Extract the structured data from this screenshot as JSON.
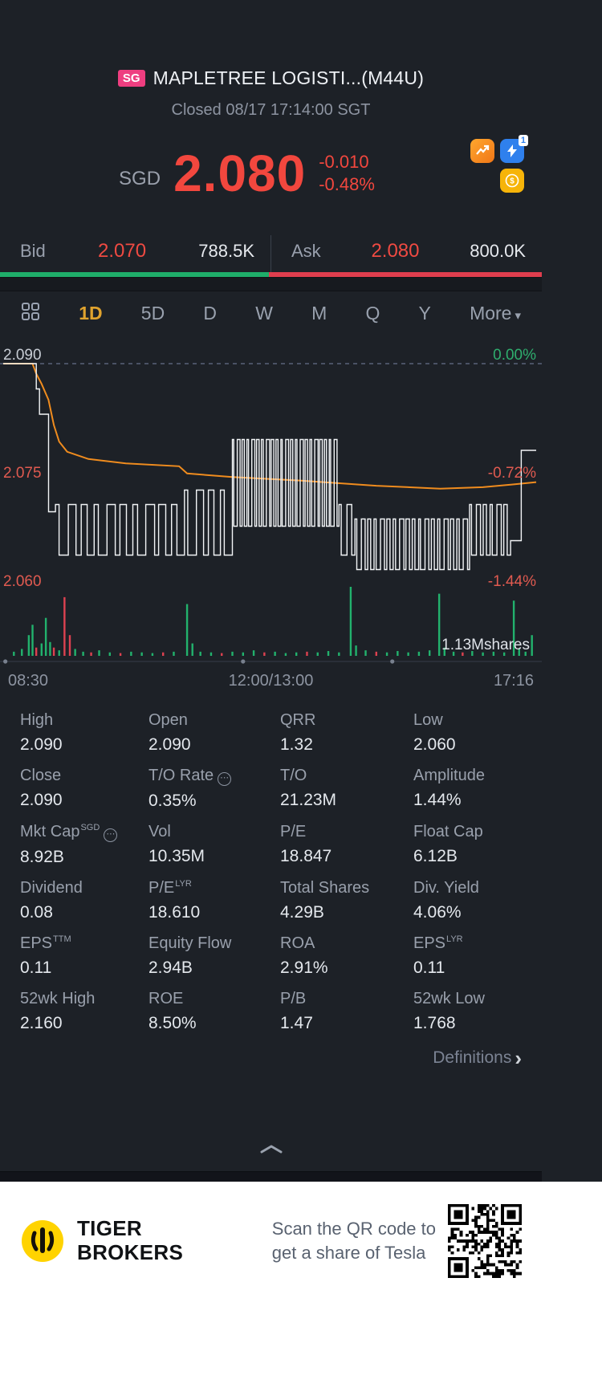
{
  "header": {
    "exchange_badge": "SG",
    "title": "MAPLETREE LOGISTI...(M44U)",
    "status": "Closed 08/17 17:14:00 SGT"
  },
  "price": {
    "currency": "SGD",
    "last": "2.080",
    "change": "-0.010",
    "change_pct": "-0.48%"
  },
  "quick_actions": {
    "flash_badge": "1",
    "rewards_symbol": "$"
  },
  "quote": {
    "bid_label": "Bid",
    "bid_price": "2.070",
    "bid_size": "788.5K",
    "ask_label": "Ask",
    "ask_price": "2.080",
    "ask_size": "800.0K",
    "bid_ratio_pct": 49.6
  },
  "tabs": {
    "items": [
      "1D",
      "5D",
      "D",
      "W",
      "M",
      "Q",
      "Y"
    ],
    "active": "1D",
    "more_label": "More"
  },
  "chart_data": {
    "type": "line",
    "x_axis_labels": [
      "08:30",
      "12:00/13:00",
      "17:16"
    ],
    "price_axis_labels": [
      {
        "text": "2.090",
        "price": 2.09,
        "color": "#c8cdd5"
      },
      {
        "text": "2.075",
        "price": 2.075,
        "color": "#e05a50"
      },
      {
        "text": "2.060",
        "price": 2.06,
        "color": "#e05a50"
      }
    ],
    "pct_axis_labels": [
      {
        "text": "0.00%",
        "price": 2.09,
        "color": "#2fae6e"
      },
      {
        "text": "-0.72%",
        "price": 2.075,
        "color": "#e05a50"
      },
      {
        "text": "-1.44%",
        "price": 2.06,
        "color": "#e05a50"
      }
    ],
    "prev_close": 2.09,
    "price_min": 2.06,
    "price_max": 2.09,
    "volume_label": "1.13Mshares",
    "price_line_color": "#f3f5f7",
    "avg_line_color": "#f08c1e",
    "volume_up_color": "#22b26d",
    "volume_down_color": "#dd4150",
    "axis_dots_x": [
      0.004,
      0.45,
      0.73
    ],
    "price_line_segments": [
      {
        "t": "flat",
        "x0": 0.0,
        "x1": 0.062,
        "p": 2.09
      },
      {
        "t": "flat",
        "x0": 0.062,
        "x1": 0.068,
        "p": 2.0865
      },
      {
        "t": "flat",
        "x0": 0.068,
        "x1": 0.08,
        "p": 2.083
      },
      {
        "t": "osc",
        "x0": 0.08,
        "x1": 0.098,
        "hi": 2.083,
        "lo": 2.0695,
        "n": 1
      },
      {
        "t": "osc",
        "x0": 0.098,
        "x1": 0.34,
        "hi": 2.0705,
        "lo": 2.0635,
        "n": 10
      },
      {
        "t": "osc",
        "x0": 0.34,
        "x1": 0.43,
        "hi": 2.0725,
        "lo": 2.0635,
        "n": 4
      },
      {
        "t": "osc",
        "x0": 0.43,
        "x1": 0.63,
        "hi": 2.0795,
        "lo": 2.0675,
        "n": 22
      },
      {
        "t": "osc",
        "x0": 0.63,
        "x1": 0.66,
        "hi": 2.0705,
        "lo": 2.0635,
        "n": 2
      },
      {
        "t": "osc",
        "x0": 0.66,
        "x1": 0.875,
        "hi": 2.0685,
        "lo": 2.0615,
        "n": 18
      },
      {
        "t": "osc",
        "x0": 0.875,
        "x1": 0.952,
        "hi": 2.0705,
        "lo": 2.0635,
        "n": 6
      },
      {
        "t": "flat",
        "x0": 0.952,
        "x1": 0.972,
        "p": 2.0655
      },
      {
        "t": "flat",
        "x0": 0.972,
        "x1": 1.0,
        "p": 2.078
      }
    ],
    "avg_line_points": [
      [
        0.0,
        2.09
      ],
      [
        0.055,
        2.09
      ],
      [
        0.062,
        2.0886
      ],
      [
        0.072,
        2.0872
      ],
      [
        0.085,
        2.085
      ],
      [
        0.095,
        2.0815
      ],
      [
        0.105,
        2.0792
      ],
      [
        0.12,
        2.0778
      ],
      [
        0.16,
        2.0768
      ],
      [
        0.23,
        2.0762
      ],
      [
        0.33,
        2.0758
      ],
      [
        0.345,
        2.0748
      ],
      [
        0.43,
        2.0743
      ],
      [
        0.56,
        2.0738
      ],
      [
        0.7,
        2.0731
      ],
      [
        0.82,
        2.0727
      ],
      [
        0.9,
        2.0729
      ],
      [
        0.96,
        2.0733
      ],
      [
        1.0,
        2.0736
      ]
    ],
    "volume_bars": [
      [
        0.02,
        0.06,
        "g"
      ],
      [
        0.035,
        0.1,
        "g"
      ],
      [
        0.048,
        0.3,
        "g"
      ],
      [
        0.055,
        0.45,
        "g"
      ],
      [
        0.062,
        0.12,
        "r"
      ],
      [
        0.072,
        0.18,
        "g"
      ],
      [
        0.08,
        0.55,
        "g"
      ],
      [
        0.088,
        0.2,
        "g"
      ],
      [
        0.095,
        0.12,
        "r"
      ],
      [
        0.105,
        0.08,
        "g"
      ],
      [
        0.115,
        0.85,
        "r"
      ],
      [
        0.125,
        0.3,
        "r"
      ],
      [
        0.135,
        0.1,
        "g"
      ],
      [
        0.15,
        0.06,
        "g"
      ],
      [
        0.165,
        0.05,
        "r"
      ],
      [
        0.18,
        0.08,
        "g"
      ],
      [
        0.2,
        0.05,
        "g"
      ],
      [
        0.22,
        0.04,
        "r"
      ],
      [
        0.24,
        0.06,
        "g"
      ],
      [
        0.26,
        0.05,
        "g"
      ],
      [
        0.28,
        0.04,
        "g"
      ],
      [
        0.3,
        0.05,
        "r"
      ],
      [
        0.32,
        0.06,
        "g"
      ],
      [
        0.345,
        0.75,
        "g"
      ],
      [
        0.355,
        0.18,
        "g"
      ],
      [
        0.37,
        0.06,
        "g"
      ],
      [
        0.39,
        0.05,
        "g"
      ],
      [
        0.41,
        0.04,
        "r"
      ],
      [
        0.43,
        0.06,
        "g"
      ],
      [
        0.45,
        0.05,
        "g"
      ],
      [
        0.47,
        0.08,
        "g"
      ],
      [
        0.49,
        0.05,
        "r"
      ],
      [
        0.51,
        0.06,
        "g"
      ],
      [
        0.53,
        0.04,
        "g"
      ],
      [
        0.55,
        0.05,
        "g"
      ],
      [
        0.57,
        0.06,
        "r"
      ],
      [
        0.59,
        0.05,
        "g"
      ],
      [
        0.61,
        0.07,
        "g"
      ],
      [
        0.63,
        0.05,
        "g"
      ],
      [
        0.652,
        1.0,
        "g"
      ],
      [
        0.662,
        0.15,
        "g"
      ],
      [
        0.68,
        0.08,
        "g"
      ],
      [
        0.7,
        0.06,
        "r"
      ],
      [
        0.72,
        0.05,
        "g"
      ],
      [
        0.74,
        0.07,
        "g"
      ],
      [
        0.76,
        0.05,
        "g"
      ],
      [
        0.78,
        0.06,
        "g"
      ],
      [
        0.8,
        0.08,
        "g"
      ],
      [
        0.818,
        0.9,
        "g"
      ],
      [
        0.828,
        0.12,
        "g"
      ],
      [
        0.845,
        0.06,
        "g"
      ],
      [
        0.862,
        0.05,
        "r"
      ],
      [
        0.88,
        0.07,
        "g"
      ],
      [
        0.9,
        0.05,
        "g"
      ],
      [
        0.92,
        0.06,
        "g"
      ],
      [
        0.94,
        0.05,
        "g"
      ],
      [
        0.958,
        0.8,
        "g"
      ],
      [
        0.968,
        0.1,
        "g"
      ],
      [
        0.98,
        0.06,
        "g"
      ],
      [
        0.992,
        0.3,
        "g"
      ]
    ]
  },
  "stats": {
    "rows": [
      [
        {
          "label": "High",
          "value": "2.090"
        },
        {
          "label": "Open",
          "value": "2.090"
        },
        {
          "label": "QRR",
          "value": "1.32"
        },
        {
          "label": "Low",
          "value": "2.060"
        }
      ],
      [
        {
          "label": "Close",
          "value": "2.090"
        },
        {
          "label": "T/O Rate",
          "value": "0.35%",
          "icon": "info"
        },
        {
          "label": "T/O",
          "value": "21.23M"
        },
        {
          "label": "Amplitude",
          "value": "1.44%"
        }
      ],
      [
        {
          "label": "Mkt Cap",
          "value": "8.92B",
          "sup": "SGD",
          "icon": "info"
        },
        {
          "label": "Vol",
          "value": "10.35M"
        },
        {
          "label": "P/E",
          "value": "18.847"
        },
        {
          "label": "Float Cap",
          "value": "6.12B"
        }
      ],
      [
        {
          "label": "Dividend",
          "value": "0.08"
        },
        {
          "label": "P/E",
          "value": "18.610",
          "sup": "LYR"
        },
        {
          "label": "Total Shares",
          "value": "4.29B"
        },
        {
          "label": "Div. Yield",
          "value": "4.06%"
        }
      ],
      [
        {
          "label": "EPS",
          "value": "0.11",
          "sup": "TTM"
        },
        {
          "label": "Equity Flow",
          "value": "2.94B"
        },
        {
          "label": "ROA",
          "value": "2.91%"
        },
        {
          "label": "EPS",
          "value": "0.11",
          "sup": "LYR"
        }
      ],
      [
        {
          "label": "52wk High",
          "value": "2.160"
        },
        {
          "label": "ROE",
          "value": "8.50%"
        },
        {
          "label": "P/B",
          "value": "1.47"
        },
        {
          "label": "52wk Low",
          "value": "1.768"
        }
      ]
    ],
    "definitions_label": "Definitions"
  },
  "footer": {
    "brand_line1": "TIGER",
    "brand_line2": "BROKERS",
    "qr_text_line1": "Scan the QR code to",
    "qr_text_line2": "get a share of Tesla"
  },
  "colors": {
    "down_red": "#f2473e",
    "up_green": "#1fae6a",
    "accent_gold": "#e0a32e",
    "brand_yellow": "#ffd300"
  }
}
